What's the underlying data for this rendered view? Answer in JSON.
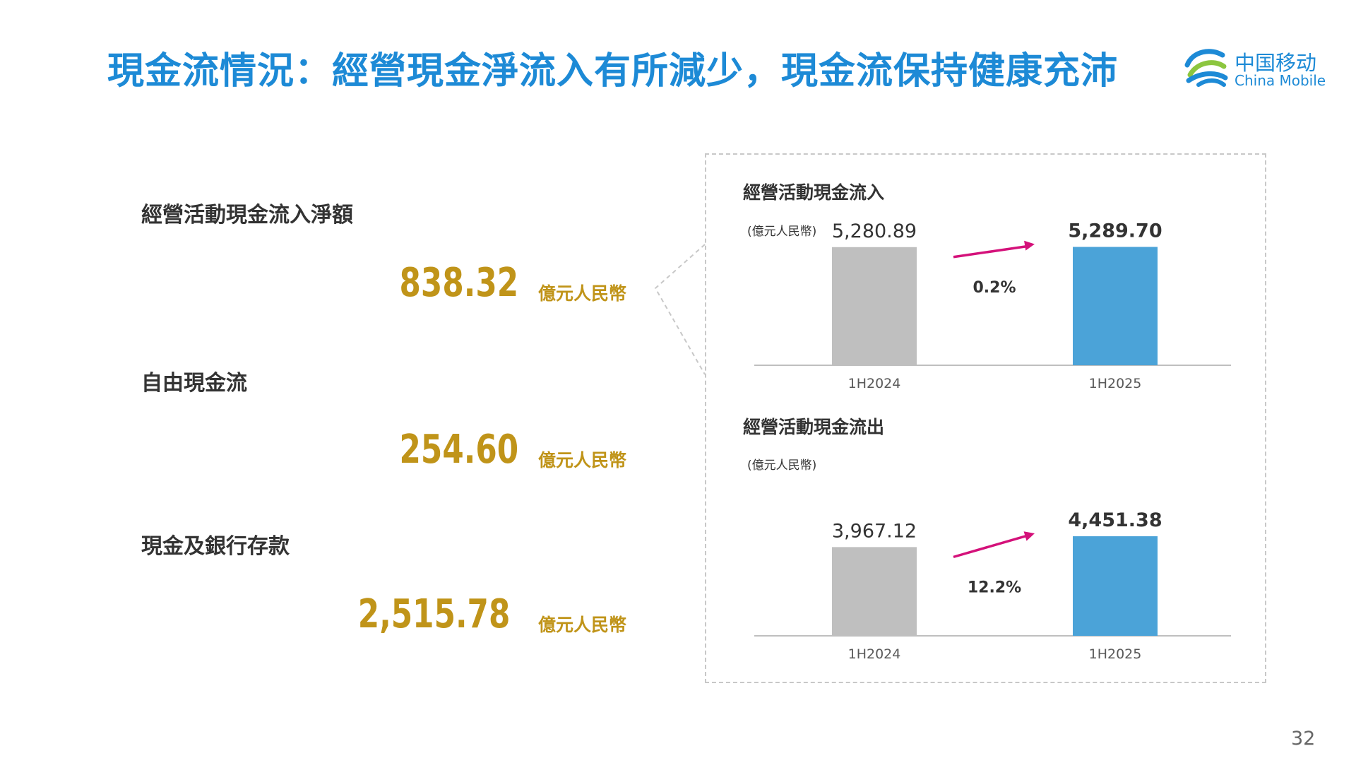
{
  "title": "現金流情況：經營現金淨流入有所減少，現金流保持健康充沛",
  "logo": {
    "name_cn": "中国移动",
    "name_en": "China Mobile"
  },
  "metrics": [
    {
      "label": "經營活動現金流入淨額",
      "value": "838.32",
      "unit": "億元人民幣"
    },
    {
      "label": "自由現金流",
      "value": "254.60",
      "unit": "億元人民幣"
    },
    {
      "label": "現金及銀行存款",
      "value": "2,515.78",
      "unit": "億元人民幣"
    }
  ],
  "colors": {
    "title": "#1d8ad6",
    "metric_value": "#c09419",
    "bar_prior": "#bfbfbf",
    "bar_current": "#4ba3d8",
    "growth_arrow": "#d4117a"
  },
  "chart_data": [
    {
      "type": "bar",
      "title": "經營活動現金流入",
      "unit": "(億元人民幣)",
      "categories": [
        "1H2024",
        "1H2025"
      ],
      "values": [
        5280.89,
        5289.7
      ],
      "value_labels": [
        "5,280.89",
        "5,289.70"
      ],
      "growth_label": "0.2%",
      "ylim": [
        0,
        6000
      ],
      "grid": false
    },
    {
      "type": "bar",
      "title": "經營活動現金流出",
      "unit": "(億元人民幣)",
      "categories": [
        "1H2024",
        "1H2025"
      ],
      "values": [
        3967.12,
        4451.38
      ],
      "value_labels": [
        "3,967.12",
        "4,451.38"
      ],
      "growth_label": "12.2%",
      "ylim": [
        0,
        6000
      ],
      "grid": false
    }
  ],
  "page_number": "32"
}
